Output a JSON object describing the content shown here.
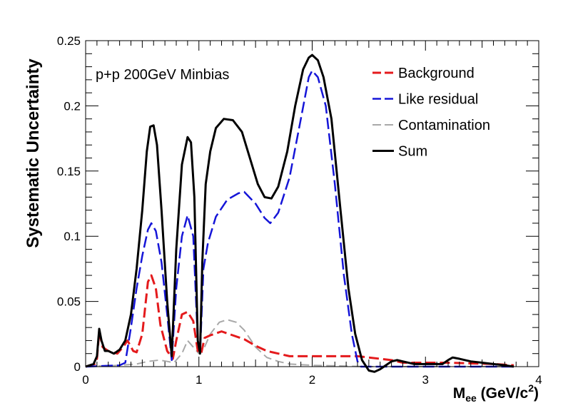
{
  "chart_data": {
    "type": "line",
    "annotation": "p+p 200GeV Minbias",
    "xlabel": {
      "main": "M",
      "sub": "ee",
      "rest": " (GeV/c",
      "sup": "2",
      "close": ")"
    },
    "ylabel": "Systematic Uncertainty",
    "xlim": [
      0,
      4
    ],
    "ylim": [
      0,
      0.25
    ],
    "xticks": [
      {
        "value": 0,
        "label": "0"
      },
      {
        "value": 1,
        "label": "1"
      },
      {
        "value": 2,
        "label": "2"
      },
      {
        "value": 3,
        "label": "3"
      },
      {
        "value": 4,
        "label": "4"
      }
    ],
    "yticks": [
      {
        "value": 0,
        "label": "0"
      },
      {
        "value": 0.05,
        "label": "0.05"
      },
      {
        "value": 0.1,
        "label": "0.1"
      },
      {
        "value": 0.15,
        "label": "0.15"
      },
      {
        "value": 0.2,
        "label": "0.2"
      },
      {
        "value": 0.25,
        "label": "0.25"
      }
    ],
    "legend_position": "top-right",
    "series": [
      {
        "name": "Background",
        "color": "#e41a1c",
        "style": "dashed",
        "points": [
          [
            0.0,
            0.0
          ],
          [
            0.08,
            0.002
          ],
          [
            0.1,
            0.006
          ],
          [
            0.12,
            0.027
          ],
          [
            0.15,
            0.015
          ],
          [
            0.2,
            0.012
          ],
          [
            0.28,
            0.01
          ],
          [
            0.33,
            0.015
          ],
          [
            0.37,
            0.02
          ],
          [
            0.42,
            0.012
          ],
          [
            0.45,
            0.011
          ],
          [
            0.5,
            0.025
          ],
          [
            0.55,
            0.065
          ],
          [
            0.58,
            0.07
          ],
          [
            0.62,
            0.06
          ],
          [
            0.66,
            0.032
          ],
          [
            0.72,
            0.012
          ],
          [
            0.77,
            0.006
          ],
          [
            0.8,
            0.02
          ],
          [
            0.85,
            0.04
          ],
          [
            0.9,
            0.042
          ],
          [
            0.95,
            0.035
          ],
          [
            0.99,
            0.012
          ],
          [
            1.02,
            0.01
          ],
          [
            1.05,
            0.022
          ],
          [
            1.1,
            0.024
          ],
          [
            1.2,
            0.027
          ],
          [
            1.3,
            0.024
          ],
          [
            1.4,
            0.021
          ],
          [
            1.5,
            0.016
          ],
          [
            1.6,
            0.012
          ],
          [
            1.7,
            0.01
          ],
          [
            1.8,
            0.008
          ],
          [
            1.9,
            0.008
          ],
          [
            2.0,
            0.008
          ],
          [
            2.1,
            0.008
          ],
          [
            2.2,
            0.008
          ],
          [
            2.3,
            0.008
          ],
          [
            2.4,
            0.008
          ],
          [
            2.5,
            0.007
          ],
          [
            2.6,
            0.006
          ],
          [
            2.7,
            0.005
          ],
          [
            2.75,
            0.004
          ],
          [
            2.8,
            0.003
          ],
          [
            3.2,
            0.003
          ],
          [
            3.6,
            0.002
          ],
          [
            3.78,
            0.001
          ]
        ]
      },
      {
        "name": "Like residual",
        "color": "#1515d8",
        "style": "dashed",
        "points": [
          [
            0.0,
            0.0
          ],
          [
            0.3,
            0.001
          ],
          [
            0.35,
            0.003
          ],
          [
            0.4,
            0.03
          ],
          [
            0.45,
            0.06
          ],
          [
            0.5,
            0.085
          ],
          [
            0.55,
            0.105
          ],
          [
            0.58,
            0.11
          ],
          [
            0.62,
            0.104
          ],
          [
            0.67,
            0.08
          ],
          [
            0.72,
            0.04
          ],
          [
            0.76,
            0.005
          ],
          [
            0.8,
            0.06
          ],
          [
            0.85,
            0.1
          ],
          [
            0.9,
            0.116
          ],
          [
            0.95,
            0.1
          ],
          [
            0.99,
            0.02
          ],
          [
            1.01,
            0.01
          ],
          [
            1.04,
            0.075
          ],
          [
            1.08,
            0.095
          ],
          [
            1.15,
            0.115
          ],
          [
            1.25,
            0.128
          ],
          [
            1.35,
            0.133
          ],
          [
            1.4,
            0.134
          ],
          [
            1.5,
            0.125
          ],
          [
            1.58,
            0.114
          ],
          [
            1.63,
            0.11
          ],
          [
            1.7,
            0.118
          ],
          [
            1.8,
            0.145
          ],
          [
            1.9,
            0.19
          ],
          [
            1.97,
            0.222
          ],
          [
            2.0,
            0.227
          ],
          [
            2.05,
            0.222
          ],
          [
            2.12,
            0.2
          ],
          [
            2.2,
            0.14
          ],
          [
            2.28,
            0.07
          ],
          [
            2.35,
            0.025
          ],
          [
            2.4,
            0.004
          ],
          [
            2.43,
            0.0
          ],
          [
            3.78,
            0.0
          ]
        ]
      },
      {
        "name": "Contamination",
        "color": "#a8a8a8",
        "style": "dashed",
        "points": [
          [
            0.0,
            0.0
          ],
          [
            0.3,
            0.001
          ],
          [
            0.45,
            0.002
          ],
          [
            0.55,
            0.004
          ],
          [
            0.65,
            0.005
          ],
          [
            0.72,
            0.004
          ],
          [
            0.78,
            0.003
          ],
          [
            0.85,
            0.01
          ],
          [
            0.9,
            0.02
          ],
          [
            0.95,
            0.015
          ],
          [
            1.0,
            0.01
          ],
          [
            1.05,
            0.015
          ],
          [
            1.1,
            0.025
          ],
          [
            1.18,
            0.034
          ],
          [
            1.25,
            0.036
          ],
          [
            1.33,
            0.034
          ],
          [
            1.4,
            0.028
          ],
          [
            1.5,
            0.015
          ],
          [
            1.6,
            0.007
          ],
          [
            1.7,
            0.004
          ],
          [
            1.8,
            0.002
          ],
          [
            2.0,
            0.001
          ],
          [
            2.5,
            0.0
          ],
          [
            3.78,
            0.0
          ]
        ]
      },
      {
        "name": "Sum",
        "color": "#000000",
        "style": "solid",
        "points": [
          [
            0.0,
            0.0
          ],
          [
            0.07,
            0.002
          ],
          [
            0.1,
            0.008
          ],
          [
            0.12,
            0.029
          ],
          [
            0.14,
            0.02
          ],
          [
            0.17,
            0.012
          ],
          [
            0.2,
            0.012
          ],
          [
            0.25,
            0.01
          ],
          [
            0.3,
            0.013
          ],
          [
            0.35,
            0.02
          ],
          [
            0.4,
            0.04
          ],
          [
            0.45,
            0.075
          ],
          [
            0.5,
            0.12
          ],
          [
            0.54,
            0.165
          ],
          [
            0.57,
            0.184
          ],
          [
            0.6,
            0.185
          ],
          [
            0.63,
            0.17
          ],
          [
            0.67,
            0.12
          ],
          [
            0.72,
            0.05
          ],
          [
            0.76,
            0.008
          ],
          [
            0.8,
            0.09
          ],
          [
            0.85,
            0.155
          ],
          [
            0.9,
            0.176
          ],
          [
            0.93,
            0.172
          ],
          [
            0.96,
            0.13
          ],
          [
            0.99,
            0.02
          ],
          [
            1.01,
            0.01
          ],
          [
            1.03,
            0.08
          ],
          [
            1.06,
            0.14
          ],
          [
            1.1,
            0.165
          ],
          [
            1.15,
            0.183
          ],
          [
            1.22,
            0.19
          ],
          [
            1.3,
            0.189
          ],
          [
            1.38,
            0.18
          ],
          [
            1.45,
            0.16
          ],
          [
            1.52,
            0.14
          ],
          [
            1.58,
            0.13
          ],
          [
            1.64,
            0.129
          ],
          [
            1.7,
            0.138
          ],
          [
            1.78,
            0.165
          ],
          [
            1.85,
            0.2
          ],
          [
            1.92,
            0.228
          ],
          [
            1.97,
            0.237
          ],
          [
            2.0,
            0.239
          ],
          [
            2.05,
            0.235
          ],
          [
            2.1,
            0.222
          ],
          [
            2.17,
            0.19
          ],
          [
            2.25,
            0.12
          ],
          [
            2.32,
            0.06
          ],
          [
            2.38,
            0.025
          ],
          [
            2.44,
            0.005
          ],
          [
            2.5,
            -0.003
          ],
          [
            2.55,
            -0.004
          ],
          [
            2.6,
            -0.002
          ],
          [
            2.65,
            0.001
          ],
          [
            2.7,
            0.004
          ],
          [
            2.75,
            0.005
          ],
          [
            2.8,
            0.004
          ],
          [
            2.9,
            0.002
          ],
          [
            3.0,
            0.002
          ],
          [
            3.1,
            0.002
          ],
          [
            3.15,
            0.002
          ],
          [
            3.2,
            0.005
          ],
          [
            3.24,
            0.007
          ],
          [
            3.3,
            0.006
          ],
          [
            3.4,
            0.004
          ],
          [
            3.5,
            0.003
          ],
          [
            3.6,
            0.002
          ],
          [
            3.7,
            0.001
          ],
          [
            3.78,
            0.0
          ]
        ]
      }
    ]
  }
}
